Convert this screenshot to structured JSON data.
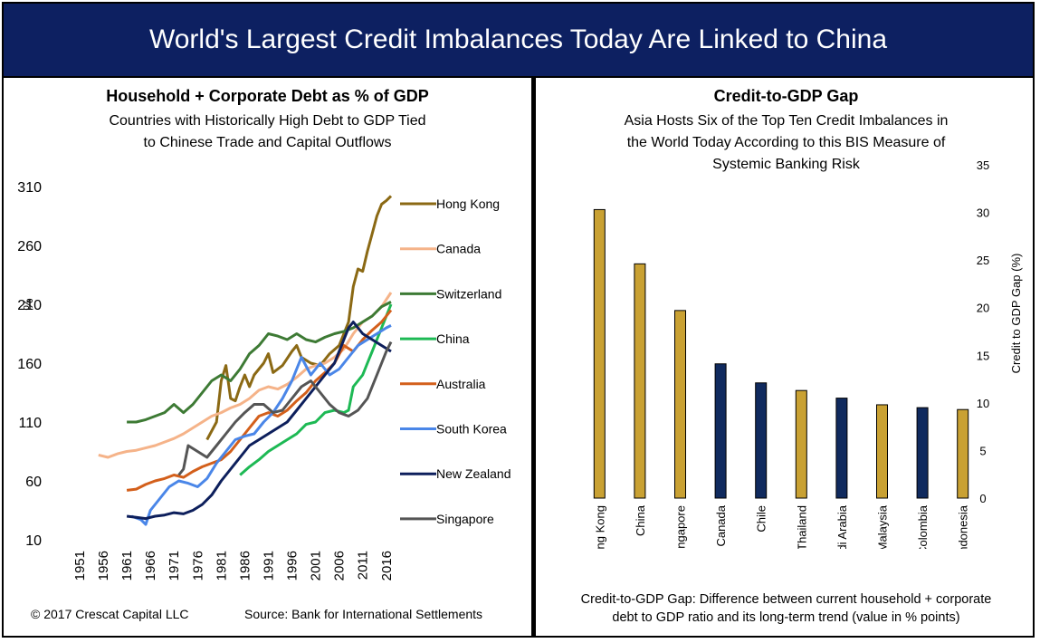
{
  "banner": {
    "title": "World's Largest Credit Imbalances Today Are Linked to China"
  },
  "left": {
    "title": "Household + Corporate Debt as % of GDP",
    "subtitle_line1": "Countries with Historically High Debt to GDP Tied",
    "subtitle_line2": "to Chinese Trade and Capital Outflows",
    "copyright": "© 2017 Crescat Capital LLC",
    "source": "Source: Bank for International Settlements"
  },
  "right": {
    "title": "Credit-to-GDP Gap",
    "subtitle_line1": "Asia Hosts Six of the Top Ten Credit Imbalances in",
    "subtitle_line2": "the World Today According to this BIS Measure of",
    "subtitle_line3": "Systemic Banking Risk",
    "footnote_line1": "Credit-to-GDP Gap: Difference between current household + corporate",
    "footnote_line2": "debt to GDP ratio and its long-term trend (value in % points)"
  },
  "colors": {
    "banner": "#0d2061",
    "gold": "#c9a133",
    "navy": "#102a5e"
  },
  "chart_data": [
    {
      "type": "line",
      "title": "Household + Corporate Debt as % of GDP",
      "ylabel": "%",
      "ylim": [
        10,
        310
      ],
      "yticks": [
        10,
        60,
        110,
        160,
        210,
        260,
        310
      ],
      "xlim": [
        1951,
        2017
      ],
      "xticks": [
        1951,
        1956,
        1961,
        1966,
        1971,
        1976,
        1981,
        1986,
        1991,
        1996,
        2001,
        2006,
        2011,
        2016
      ],
      "legend_position": "right",
      "series": [
        {
          "name": "Hong Kong",
          "color": "#8b6914",
          "x": [
            1978,
            1980,
            1981,
            1982,
            1983,
            1984,
            1985,
            1986,
            1987,
            1988,
            1990,
            1991,
            1992,
            1994,
            1996,
            1997,
            1998,
            2000,
            2002,
            2004,
            2006,
            2008,
            2009,
            2010,
            2011,
            2012,
            2013,
            2014,
            2015,
            2016,
            2017
          ],
          "y": [
            95,
            110,
            145,
            158,
            130,
            128,
            140,
            150,
            140,
            150,
            160,
            168,
            152,
            158,
            170,
            175,
            165,
            160,
            158,
            168,
            175,
            195,
            225,
            240,
            238,
            255,
            270,
            285,
            295,
            298,
            302
          ]
        },
        {
          "name": "Canada",
          "color": "#f5b389",
          "x": [
            1955,
            1957,
            1959,
            1961,
            1963,
            1965,
            1967,
            1969,
            1971,
            1973,
            1975,
            1977,
            1979,
            1981,
            1983,
            1985,
            1987,
            1989,
            1991,
            1993,
            1995,
            1997,
            1999,
            2001,
            2003,
            2005,
            2007,
            2009,
            2011,
            2013,
            2015,
            2017
          ],
          "y": [
            82,
            80,
            83,
            85,
            86,
            88,
            90,
            93,
            96,
            100,
            105,
            110,
            115,
            118,
            122,
            125,
            130,
            137,
            140,
            138,
            142,
            148,
            155,
            158,
            160,
            165,
            172,
            185,
            195,
            200,
            208,
            220
          ]
        },
        {
          "name": "Switzerland",
          "color": "#3d7a34",
          "x": [
            1961,
            1963,
            1965,
            1967,
            1969,
            1971,
            1973,
            1975,
            1977,
            1979,
            1981,
            1983,
            1985,
            1987,
            1989,
            1991,
            1993,
            1995,
            1997,
            1999,
            2001,
            2003,
            2005,
            2007,
            2009,
            2011,
            2013,
            2015,
            2017
          ],
          "y": [
            110,
            110,
            112,
            115,
            118,
            125,
            118,
            125,
            135,
            145,
            150,
            145,
            155,
            168,
            175,
            185,
            183,
            180,
            185,
            180,
            178,
            182,
            185,
            187,
            190,
            195,
            200,
            208,
            212
          ]
        },
        {
          "name": "China",
          "color": "#1db954",
          "x": [
            1985,
            1987,
            1989,
            1991,
            1993,
            1995,
            1997,
            1999,
            2001,
            2003,
            2005,
            2007,
            2008,
            2009,
            2010,
            2011,
            2012,
            2013,
            2014,
            2015,
            2016,
            2017
          ],
          "y": [
            65,
            72,
            78,
            85,
            90,
            95,
            100,
            108,
            110,
            118,
            120,
            118,
            120,
            140,
            145,
            150,
            160,
            170,
            180,
            190,
            200,
            210
          ]
        },
        {
          "name": "Australia",
          "color": "#d35f1b",
          "x": [
            1961,
            1963,
            1965,
            1967,
            1969,
            1971,
            1973,
            1975,
            1977,
            1979,
            1981,
            1983,
            1985,
            1987,
            1989,
            1991,
            1993,
            1995,
            1997,
            1999,
            2001,
            2003,
            2005,
            2007,
            2009,
            2011,
            2013,
            2015,
            2017
          ],
          "y": [
            52,
            53,
            57,
            60,
            62,
            65,
            63,
            68,
            72,
            75,
            78,
            85,
            95,
            105,
            115,
            118,
            115,
            120,
            128,
            135,
            145,
            152,
            160,
            175,
            170,
            180,
            188,
            195,
            205
          ]
        },
        {
          "name": "South Korea",
          "color": "#4a86e8",
          "x": [
            1962,
            1964,
            1965,
            1966,
            1968,
            1970,
            1972,
            1974,
            1976,
            1978,
            1980,
            1982,
            1984,
            1986,
            1988,
            1990,
            1992,
            1994,
            1996,
            1998,
            2000,
            2002,
            2004,
            2006,
            2008,
            2010,
            2012,
            2014,
            2016,
            2017
          ],
          "y": [
            30,
            27,
            23,
            35,
            45,
            55,
            60,
            58,
            55,
            62,
            75,
            85,
            95,
            98,
            100,
            110,
            118,
            130,
            145,
            165,
            150,
            160,
            150,
            155,
            165,
            175,
            180,
            185,
            190,
            192
          ]
        },
        {
          "name": "New Zealand",
          "color": "#0d1f5c",
          "x": [
            1961,
            1963,
            1965,
            1967,
            1969,
            1971,
            1973,
            1975,
            1977,
            1979,
            1981,
            1983,
            1985,
            1987,
            1989,
            1991,
            1993,
            1995,
            1997,
            1999,
            2001,
            2003,
            2005,
            2007,
            2008,
            2009,
            2011,
            2013,
            2015,
            2017
          ],
          "y": [
            30,
            29,
            28,
            30,
            31,
            33,
            32,
            35,
            40,
            48,
            60,
            70,
            80,
            90,
            95,
            100,
            105,
            110,
            120,
            130,
            140,
            150,
            160,
            180,
            190,
            195,
            185,
            180,
            175,
            170
          ]
        },
        {
          "name": "Singapore",
          "color": "#555555",
          "x": [
            1972,
            1973,
            1974,
            1976,
            1978,
            1980,
            1982,
            1984,
            1986,
            1988,
            1990,
            1992,
            1994,
            1996,
            1998,
            2000,
            2002,
            2004,
            2006,
            2008,
            2010,
            2012,
            2014,
            2016,
            2017
          ],
          "y": [
            65,
            70,
            90,
            85,
            80,
            90,
            100,
            110,
            118,
            125,
            125,
            118,
            120,
            130,
            140,
            145,
            135,
            125,
            118,
            115,
            120,
            130,
            150,
            170,
            178
          ]
        }
      ]
    },
    {
      "type": "bar",
      "title": "Credit-to-GDP Gap",
      "ylabel": "Credit to GDP Gap (%)",
      "ylim": [
        0,
        35
      ],
      "yticks": [
        0,
        5,
        10,
        15,
        20,
        25,
        30,
        35
      ],
      "categories": [
        "Hong Kong",
        "China",
        "Singapore",
        "Canada",
        "Chile",
        "Thailand",
        "Saudi Arabia",
        "Malaysia",
        "Colombia",
        "Indonesia"
      ],
      "values": [
        30.3,
        24.6,
        19.7,
        14.1,
        12.1,
        11.3,
        10.5,
        9.8,
        9.5,
        9.3
      ],
      "bar_colors": [
        "#c9a133",
        "#c9a133",
        "#c9a133",
        "#102a5e",
        "#102a5e",
        "#c9a133",
        "#102a5e",
        "#c9a133",
        "#102a5e",
        "#c9a133"
      ]
    }
  ]
}
